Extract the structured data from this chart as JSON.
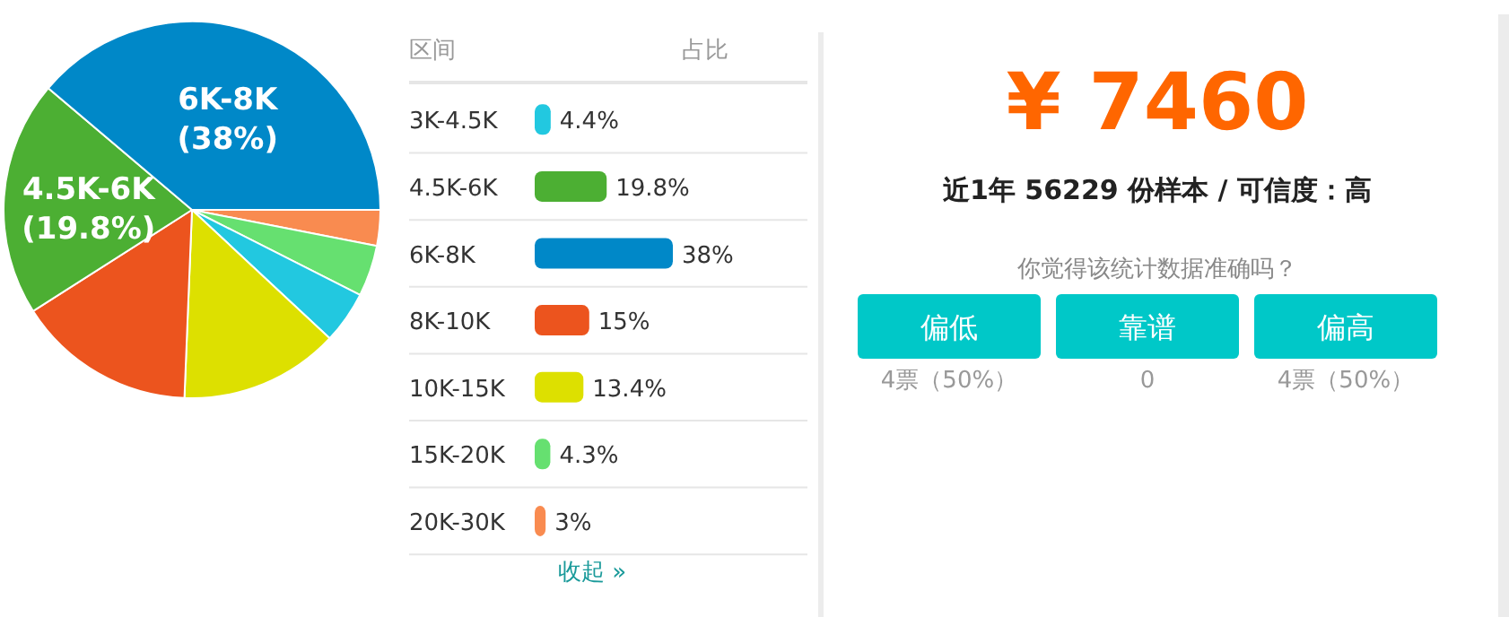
{
  "chart_data": [
    {
      "type": "pie",
      "categories": [
        null,
        null,
        null,
        null,
        null,
        "4.5K-6K",
        "6K-8K"
      ],
      "values": [
        3,
        4.3,
        4.4,
        13.4,
        15,
        19.8,
        38
      ],
      "colors": [
        "#f98b50",
        "#66e070",
        "#22c8e0",
        "#dde000",
        "#ec541e",
        "#4caf33",
        "#0088c8"
      ],
      "value_labels": [
        null,
        null,
        null,
        null,
        null,
        "(19.8%)",
        "(38%)"
      ]
    },
    {
      "type": "bar",
      "orientation": "horizontal",
      "ylabel": "区间",
      "categories": [
        "3K-4.5K",
        "4.5K-6K",
        "6K-8K",
        "8K-10K",
        "10K-15K",
        "15K-20K",
        "20K-30K"
      ],
      "values": [
        4.4,
        19.8,
        38,
        15,
        13.4,
        4.3,
        3
      ],
      "colors": [
        "#22c8e0",
        "#4caf33",
        "#0088c8",
        "#ec541e",
        "#dde000",
        "#66e070",
        "#f98b50"
      ],
      "value_labels": [
        "4.4%",
        "19.8%",
        "38%",
        "15%",
        "13.4%",
        "4.3%",
        "3%"
      ],
      "annotations": [
        "占比",
        "收起 »"
      ]
    },
    {
      "type": "other",
      "title": "¥ 7460",
      "subtitle": "近1年 56229 份样本 / 可信度：高",
      "categories": [
        "偏低",
        "靠谱",
        "偏高"
      ],
      "value_labels": [
        "4票（50%）",
        "0",
        "4票（50%）"
      ],
      "color": "#00c8c8",
      "annotations": [
        "你觉得该统计数据准确吗？"
      ]
    }
  ]
}
